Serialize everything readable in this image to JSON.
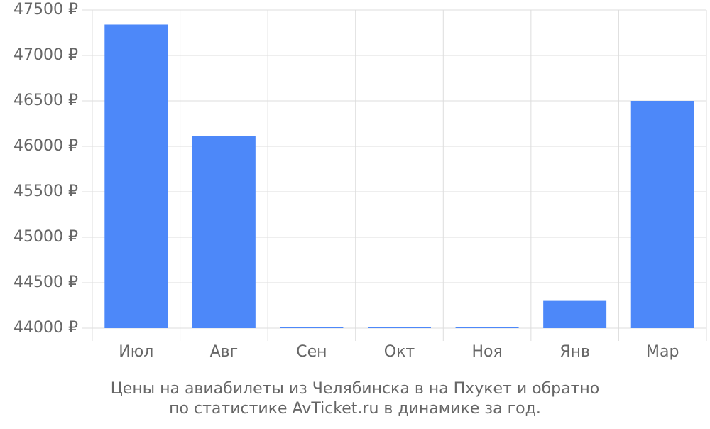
{
  "chart_data": {
    "type": "bar",
    "caption": [
      "Цены на авиабилеты из Челябинска в на Пхукет и обратно",
      "по статистике AvTicket.ru в динамике за год."
    ],
    "categories": [
      "Июл",
      "Авг",
      "Сен",
      "Окт",
      "Ноя",
      "Янв",
      "Мар"
    ],
    "values": [
      47340,
      46110,
      44010,
      44010,
      44010,
      44300,
      46500
    ],
    "color": "#4d88f9",
    "ylim": [
      44000,
      47500
    ],
    "yticks": [
      {
        "value": 44000,
        "label": "44000 ₽"
      },
      {
        "value": 44500,
        "label": "44500 ₽"
      },
      {
        "value": 45000,
        "label": "45000 ₽"
      },
      {
        "value": 45500,
        "label": "45500 ₽"
      },
      {
        "value": 46000,
        "label": "46000 ₽"
      },
      {
        "value": 46500,
        "label": "46500 ₽"
      },
      {
        "value": 47000,
        "label": "47000 ₽"
      },
      {
        "value": 47500,
        "label": "47500 ₽"
      }
    ],
    "grid": true
  }
}
